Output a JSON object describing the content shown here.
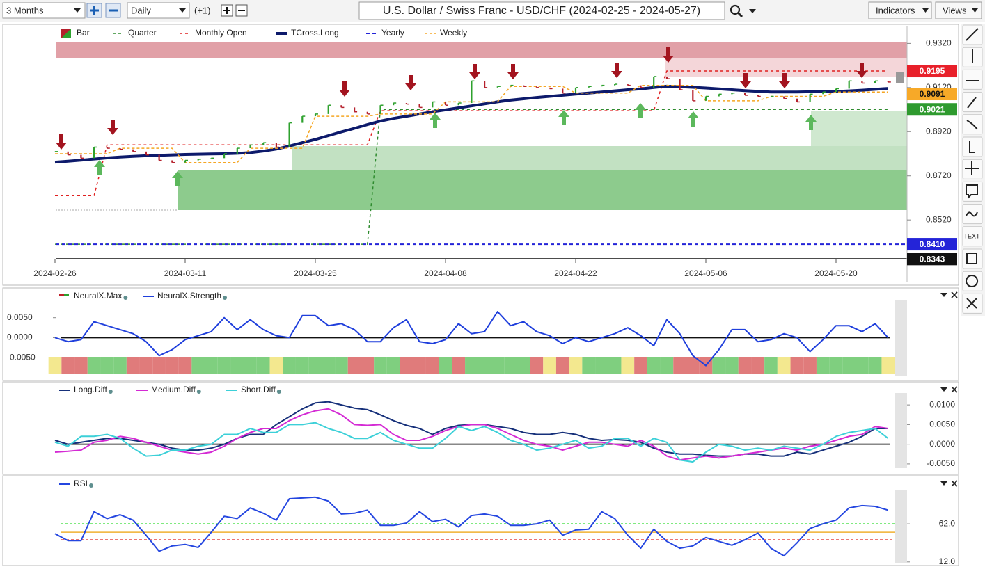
{
  "toolbar": {
    "period": "3 Months",
    "interval": "Daily",
    "offset": "(+1)",
    "title": "U.S. Dollar / Swiss Franc - USD/CHF (2024-02-25 - 2024-05-27)",
    "indicators": "Indicators",
    "views": "Views"
  },
  "tools": {
    "text_tool": "TEXT"
  },
  "main_chart": {
    "type": "candlestick",
    "categories": [
      "2024-02-26",
      null,
      null,
      null,
      null,
      null,
      null,
      null,
      null,
      null,
      "2024-03-11",
      null,
      null,
      null,
      null,
      null,
      null,
      null,
      null,
      null,
      "2024-03-25",
      null,
      null,
      null,
      null,
      null,
      null,
      null,
      null,
      null,
      "2024-04-08",
      null,
      null,
      null,
      null,
      null,
      null,
      null,
      null,
      null,
      "2024-04-22",
      null,
      null,
      null,
      null,
      null,
      null,
      null,
      null,
      null,
      "2024-05-06",
      null,
      null,
      null,
      null,
      null,
      null,
      null,
      null,
      null,
      "2024-05-20",
      null,
      null,
      null,
      null
    ],
    "ylim": [
      0.824,
      0.94
    ],
    "yticks": [
      {
        "value": 0.932,
        "label": "0.9320"
      },
      {
        "value": 0.912,
        "label": "0.9120"
      },
      {
        "value": 0.892,
        "label": "0.8920"
      },
      {
        "value": 0.872,
        "label": "0.8720"
      },
      {
        "value": 0.852,
        "label": "0.8520"
      }
    ],
    "series": [
      {
        "name": "Bar",
        "kind": "bar",
        "up_color": "#2ea12e",
        "down_color": "#b5202c",
        "values": [
          0.883,
          0.8815,
          0.88,
          0.885,
          0.8845,
          0.884,
          0.883,
          0.8815,
          0.879,
          0.878,
          0.879,
          0.8795,
          0.88,
          0.882,
          0.8845,
          0.886,
          0.887,
          0.885,
          0.896,
          0.899,
          0.9,
          0.904,
          0.903,
          0.901,
          0.9,
          0.904,
          0.905,
          0.9045,
          0.903,
          0.9055,
          0.904,
          0.905,
          0.915,
          0.912,
          0.9125,
          0.913,
          0.9125,
          0.912,
          0.9115,
          0.9095,
          0.912,
          0.9125,
          0.913,
          0.9135,
          0.913,
          0.912,
          0.917,
          0.916,
          0.911,
          0.906,
          0.908,
          0.909,
          0.9095,
          0.9085,
          0.908,
          0.908,
          0.907,
          0.9055,
          0.909,
          0.91,
          0.9115,
          0.915,
          0.914,
          0.915,
          0.9145
        ]
      },
      {
        "name": "Quarter",
        "kind": "line",
        "color": "#2e8b2e",
        "dash": "4 4",
        "width": 1.5,
        "values": [
          0.841,
          0.841,
          0.841,
          0.841,
          0.841,
          0.841,
          0.841,
          0.841,
          0.841,
          0.841,
          0.841,
          0.841,
          0.841,
          0.841,
          0.841,
          0.841,
          0.841,
          0.841,
          0.841,
          0.841,
          0.841,
          0.841,
          0.841,
          0.841,
          0.841,
          0.9021,
          0.9021,
          0.9021,
          0.9021,
          0.9021,
          0.9021,
          0.9021,
          0.9021,
          0.9021,
          0.9021,
          0.9021,
          0.9021,
          0.9021,
          0.9021,
          0.9021,
          0.9021,
          0.9021,
          0.9021,
          0.9021,
          0.9021,
          0.9021,
          0.9021,
          0.9021,
          0.9021,
          0.9021,
          0.9021,
          0.9021,
          0.9021,
          0.9021,
          0.9021,
          0.9021,
          0.9021,
          0.9021,
          0.9021,
          0.9021,
          0.9021,
          0.9021,
          0.9021,
          0.9021,
          0.9021
        ]
      },
      {
        "name": "Monthly Open",
        "kind": "line",
        "color": "#e02020",
        "dash": "4 4",
        "width": 1.5,
        "values": [
          0.863,
          0.863,
          0.863,
          0.863,
          0.886,
          0.886,
          0.886,
          0.886,
          0.886,
          0.886,
          0.886,
          0.886,
          0.886,
          0.886,
          0.886,
          0.886,
          0.886,
          0.886,
          0.886,
          0.886,
          0.886,
          0.886,
          0.886,
          0.886,
          0.886,
          0.9015,
          0.9015,
          0.9015,
          0.9015,
          0.9015,
          0.9015,
          0.9015,
          0.9015,
          0.9015,
          0.9015,
          0.9015,
          0.9015,
          0.9015,
          0.9015,
          0.9015,
          0.9015,
          0.9015,
          0.9015,
          0.9015,
          0.9015,
          0.9015,
          0.9015,
          0.9195,
          0.9195,
          0.9195,
          0.9195,
          0.9195,
          0.9195,
          0.9195,
          0.9195,
          0.9195,
          0.9195,
          0.9195,
          0.9195,
          0.9195,
          0.9195,
          0.9195,
          0.9195,
          0.9195,
          0.9195
        ]
      },
      {
        "name": "TCross.Long",
        "kind": "line",
        "color": "#0d1a6b",
        "width": 4,
        "values": [
          0.8782,
          0.8786,
          0.8791,
          0.8796,
          0.8801,
          0.8805,
          0.8808,
          0.8811,
          0.8813,
          0.8815,
          0.8817,
          0.8818,
          0.8819,
          0.882,
          0.8822,
          0.8825,
          0.8832,
          0.8841,
          0.8855,
          0.887,
          0.8885,
          0.8902,
          0.8919,
          0.8935,
          0.8952,
          0.8968,
          0.898,
          0.899,
          0.9,
          0.901,
          0.9019,
          0.9028,
          0.9037,
          0.9046,
          0.9055,
          0.9063,
          0.9069,
          0.9075,
          0.908,
          0.9085,
          0.909,
          0.9095,
          0.91,
          0.9105,
          0.911,
          0.9114,
          0.912,
          0.9126,
          0.9124,
          0.9121,
          0.9118,
          0.9114,
          0.911,
          0.9106,
          0.9103,
          0.91,
          0.91,
          0.91,
          0.9101,
          0.9101,
          0.9102,
          0.9105,
          0.9108,
          0.9112,
          0.9116
        ]
      },
      {
        "name": "Yearly",
        "kind": "level",
        "color": "#2424d8",
        "dash": "5 4",
        "width": 2,
        "level": 0.841,
        "label": "0.8410"
      },
      {
        "name": "Weekly",
        "kind": "line",
        "color": "#f5a623",
        "dash": "4 3",
        "width": 1.5,
        "values": [
          0.882,
          0.882,
          0.882,
          0.882,
          0.882,
          0.8845,
          0.8845,
          0.8845,
          0.8845,
          0.8845,
          0.878,
          0.878,
          0.878,
          0.878,
          0.878,
          0.8845,
          0.8845,
          0.8845,
          0.8845,
          0.8845,
          0.899,
          0.899,
          0.899,
          0.899,
          0.899,
          0.9,
          0.9,
          0.9,
          0.9,
          0.9,
          0.9055,
          0.9055,
          0.9055,
          0.9055,
          0.9055,
          0.9125,
          0.9125,
          0.9125,
          0.9125,
          0.9125,
          0.9095,
          0.9095,
          0.9095,
          0.9095,
          0.9095,
          0.913,
          0.913,
          0.913,
          0.913,
          0.913,
          0.906,
          0.906,
          0.906,
          0.906,
          0.906,
          0.908,
          0.908,
          0.908,
          0.908,
          0.908,
          0.91,
          0.91,
          0.91,
          0.91,
          0.91
        ]
      }
    ],
    "price_tags": [
      {
        "value": 0.9195,
        "color": "#e8202a",
        "text_color": "#ffffff"
      },
      {
        "value": 0.9091,
        "color": "#f7a928",
        "text_color": "#111111"
      },
      {
        "value": 0.9021,
        "color": "#2e9a2e",
        "text_color": "#ffffff"
      },
      {
        "value": 0.8343,
        "color": "#111111",
        "text_color": "#ffffff"
      }
    ]
  },
  "neuralx_panel": {
    "type": "line",
    "ylim": [
      -0.0095,
      0.0093
    ],
    "yticks": [
      {
        "value": 0.005,
        "label": "0.0050"
      },
      {
        "value": 0,
        "label": "0.0000"
      },
      {
        "value": -0.005,
        "label": "-0.0050"
      }
    ],
    "zero_line": true,
    "series": [
      {
        "name": "NeuralX.Max",
        "colors": [
          "#f3e88f",
          "#e07b7b",
          "#e07b7b",
          "#7fcf7f",
          "#7fcf7f",
          "#7fcf7f",
          "#e07b7b",
          "#e07b7b",
          "#e07b7b",
          "#e07b7b",
          "#e07b7b",
          "#7fcf7f",
          "#7fcf7f",
          "#7fcf7f",
          "#7fcf7f",
          "#7fcf7f",
          "#7fcf7f",
          "#f3e88f",
          "#7fcf7f",
          "#7fcf7f",
          "#7fcf7f",
          "#7fcf7f",
          "#7fcf7f",
          "#e07b7b",
          "#e07b7b",
          "#7fcf7f",
          "#7fcf7f",
          "#e07b7b",
          "#e07b7b",
          "#e07b7b",
          "#7fcf7f",
          "#e07b7b",
          "#7fcf7f",
          "#7fcf7f",
          "#7fcf7f",
          "#7fcf7f",
          "#7fcf7f",
          "#e07b7b",
          "#f3e88f",
          "#e07b7b",
          "#f3e88f",
          "#7fcf7f",
          "#7fcf7f",
          "#7fcf7f",
          "#f3e88f",
          "#e07b7b",
          "#7fcf7f",
          "#7fcf7f",
          "#e07b7b",
          "#e07b7b",
          "#e07b7b",
          "#7fcf7f",
          "#7fcf7f",
          "#e07b7b",
          "#e07b7b",
          "#7fcf7f",
          "#f3e88f",
          "#e07b7b",
          "#e07b7b",
          "#7fcf7f",
          "#7fcf7f",
          "#7fcf7f",
          "#7fcf7f",
          "#7fcf7f",
          "#f3e88f"
        ]
      },
      {
        "name": "NeuralX.Strength",
        "color": "#1f3fdc",
        "values": [
          0.0,
          -0.001,
          -0.0005,
          0.004,
          0.003,
          0.002,
          0.001,
          -0.001,
          -0.0045,
          -0.003,
          -0.0005,
          0.0005,
          0.0015,
          0.005,
          0.002,
          0.0045,
          0.002,
          0.0005,
          0.0,
          0.0055,
          0.0055,
          0.003,
          0.0035,
          0.002,
          -0.001,
          -0.001,
          0.0025,
          0.0045,
          -0.001,
          -0.0015,
          -0.0005,
          0.0035,
          0.001,
          0.0015,
          0.0065,
          0.003,
          0.004,
          0.0015,
          0.0005,
          -0.0015,
          0.0,
          -0.001,
          0.0,
          0.001,
          0.0025,
          0.0005,
          -0.002,
          0.0045,
          0.001,
          -0.0045,
          -0.007,
          -0.003,
          0.002,
          0.002,
          -0.001,
          -0.0005,
          0.001,
          0.0,
          -0.0035,
          -0.0005,
          0.003,
          0.003,
          0.0015,
          0.0035,
          0.0
        ]
      }
    ]
  },
  "diff_panel": {
    "type": "line",
    "ylim": [
      -0.0059,
      0.0125
    ],
    "yticks": [
      {
        "value": 0.01,
        "label": "0.0100"
      },
      {
        "value": 0.005,
        "label": "0.0050"
      },
      {
        "value": 0,
        "label": "0.0000"
      },
      {
        "value": -0.005,
        "label": "-0.0050"
      }
    ],
    "zero_line": true,
    "series": [
      {
        "name": "Long.Diff",
        "color": "#16307a",
        "values": [
          0.001,
          0.0,
          0.0005,
          0.001,
          0.0015,
          0.0015,
          0.001,
          0.0005,
          0.0,
          -0.001,
          -0.0015,
          -0.0015,
          -0.001,
          0.0,
          0.0015,
          0.0025,
          0.0025,
          0.005,
          0.007,
          0.009,
          0.0105,
          0.0108,
          0.01,
          0.0092,
          0.0088,
          0.0075,
          0.006,
          0.0048,
          0.004,
          0.0025,
          0.004,
          0.0048,
          0.005,
          0.005,
          0.0045,
          0.004,
          0.003,
          0.0025,
          0.0025,
          0.003,
          0.0025,
          0.0015,
          0.001,
          0.0012,
          0.001,
          0.0005,
          -0.001,
          -0.002,
          -0.0025,
          -0.0025,
          -0.0028,
          -0.003,
          -0.003,
          -0.0025,
          -0.0025,
          -0.003,
          -0.003,
          -0.002,
          -0.0025,
          -0.0015,
          -0.0005,
          0.0005,
          0.002,
          0.004,
          0.004
        ]
      },
      {
        "name": "Medium.Diff",
        "color": "#d42ad4",
        "values": [
          -0.002,
          -0.0018,
          -0.0015,
          0.0005,
          0.001,
          0.002,
          0.0015,
          0.0005,
          -0.0005,
          -0.0015,
          -0.002,
          -0.0025,
          -0.002,
          -0.0005,
          0.0015,
          0.003,
          0.004,
          0.004,
          0.006,
          0.0075,
          0.0085,
          0.009,
          0.0075,
          0.005,
          0.0048,
          0.005,
          0.0025,
          0.001,
          0.001,
          0.002,
          0.0035,
          0.0045,
          0.005,
          0.005,
          0.004,
          0.0025,
          0.001,
          0.0,
          -0.0005,
          -0.0015,
          -0.0005,
          0.0005,
          0.0005,
          0.0,
          -0.0005,
          0.001,
          -0.0005,
          -0.003,
          -0.004,
          -0.0035,
          -0.003,
          -0.0035,
          -0.003,
          -0.0025,
          -0.002,
          -0.0015,
          -0.001,
          -0.0015,
          -0.0005,
          0.0,
          0.001,
          0.002,
          0.0025,
          0.0045,
          0.004
        ]
      },
      {
        "name": "Short.Diff",
        "color": "#3cd0d8",
        "values": [
          0.0005,
          -0.0005,
          0.002,
          0.002,
          0.0025,
          0.0015,
          -0.001,
          -0.003,
          -0.0028,
          -0.0015,
          -0.0015,
          -0.0005,
          0.0,
          0.0025,
          0.0025,
          0.004,
          0.003,
          0.003,
          0.005,
          0.005,
          0.0055,
          0.004,
          0.003,
          0.0015,
          0.0015,
          0.003,
          0.001,
          0.0,
          -0.001,
          -0.001,
          0.0015,
          0.0045,
          0.0035,
          0.0045,
          0.003,
          0.001,
          0.0,
          -0.0015,
          -0.001,
          0.0,
          0.001,
          -0.001,
          -0.0005,
          0.0015,
          0.0015,
          -0.0005,
          0.0015,
          0.0005,
          -0.004,
          -0.0045,
          -0.002,
          0.0,
          -0.0005,
          -0.0015,
          -0.001,
          -0.0015,
          -0.0005,
          -0.001,
          -0.0015,
          0.0,
          0.002,
          0.003,
          0.0035,
          0.004,
          0.0015
        ]
      }
    ]
  },
  "rsi_panel": {
    "type": "line",
    "ylim": [
      10,
      106
    ],
    "yticks": [
      {
        "value": 62,
        "label": "62.0"
      },
      {
        "value": 12,
        "label": "12.0"
      }
    ],
    "levels": [
      {
        "value": 62,
        "color": "#33dd33",
        "dash": "3 3"
      },
      {
        "value": 51,
        "color": "#f0b030"
      },
      {
        "value": 41,
        "color": "#e02020",
        "dash": "4 3"
      }
    ],
    "series": [
      {
        "name": "RSI",
        "color": "#2446e0",
        "values": [
          49,
          40,
          40,
          78,
          69,
          74,
          67,
          47,
          26,
          33,
          35,
          31,
          51,
          72,
          69,
          83,
          76,
          67,
          95,
          96,
          97,
          92,
          75,
          76,
          80,
          60,
          60,
          63,
          78,
          65,
          68,
          58,
          73,
          75,
          72,
          60,
          60,
          62,
          67,
          47,
          54,
          55,
          78,
          69,
          47,
          30,
          55,
          39,
          30,
          33,
          44,
          39,
          34,
          41,
          50,
          30,
          20,
          37,
          56,
          62,
          67,
          83,
          86,
          85,
          80
        ]
      }
    ]
  }
}
